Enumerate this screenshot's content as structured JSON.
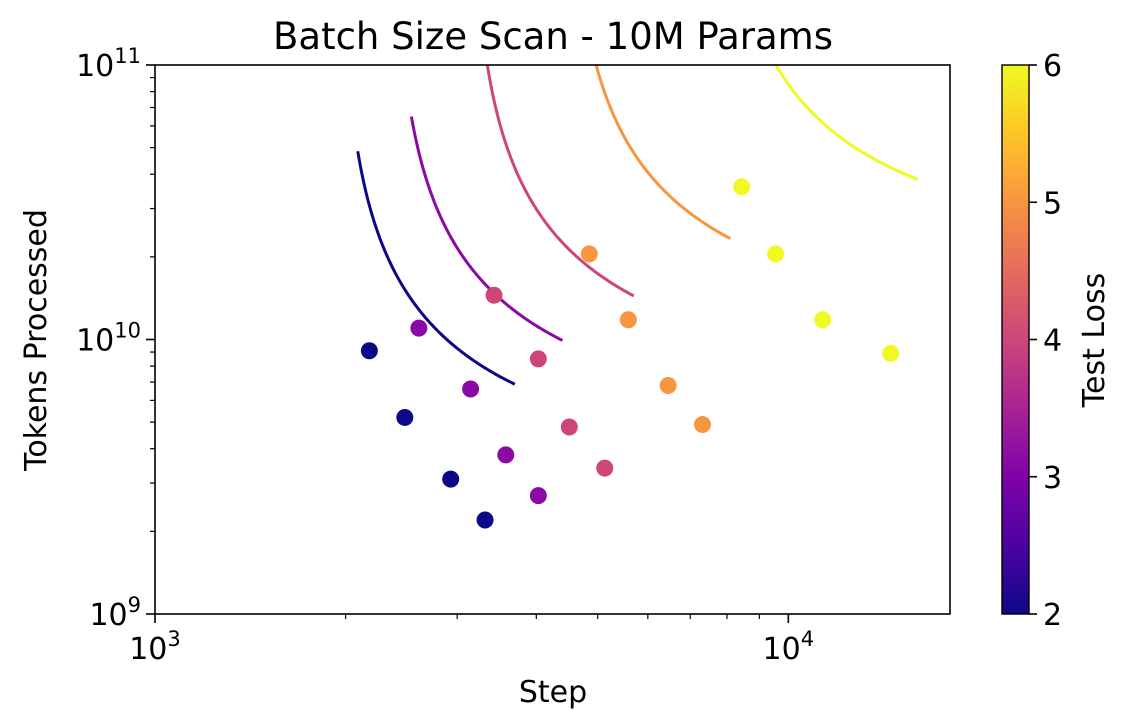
{
  "chart_data": {
    "type": "scatter",
    "title": "Batch Size Scan - 10M Params",
    "xlabel": "Step",
    "ylabel": "Tokens Processed",
    "xscale": "log",
    "yscale": "log",
    "xlim": [
      1000,
      18000
    ],
    "ylim": [
      1000000000,
      100000000000
    ],
    "x_ticks": [
      {
        "value": 1000,
        "base": "10",
        "exp": "3"
      },
      {
        "value": 10000,
        "base": "10",
        "exp": "4"
      }
    ],
    "y_ticks": [
      {
        "value": 1000000000,
        "base": "10",
        "exp": "9"
      },
      {
        "value": 10000000000,
        "base": "10",
        "exp": "10"
      },
      {
        "value": 100000000000,
        "base": "10",
        "exp": "11"
      }
    ],
    "colorbar": {
      "label": "Test Loss",
      "colormap": "plasma",
      "range": [
        2,
        6
      ],
      "ticks": [
        "2",
        "3",
        "4",
        "5",
        "6"
      ]
    },
    "series": [
      {
        "loss": 2.0,
        "color": "#0d0887",
        "points": [
          [
            2180,
            9100000000.0
          ],
          [
            2480,
            5200000000.0
          ],
          [
            2930,
            3100000000.0
          ],
          [
            3320,
            2200000000.0
          ]
        ],
        "curve": {
          "k": 3250000000.0,
          "x0": 1950,
          "x_range": [
            2090,
            3700
          ]
        }
      },
      {
        "loss": 3.0,
        "color": "#8b0aa5",
        "points": [
          [
            2610,
            11000000000.0
          ],
          [
            3150,
            6600000000.0
          ],
          [
            3580,
            3800000000.0
          ],
          [
            4030,
            2700000000.0
          ]
        ],
        "curve": {
          "k": 4600000000.0,
          "x0": 2360,
          "x_range": [
            2540,
            4400
          ]
        }
      },
      {
        "loss": 4.0,
        "color": "#cc4778",
        "points": [
          [
            3430,
            14500000000.0
          ],
          [
            4030,
            8500000000.0
          ],
          [
            4510,
            4800000000.0
          ],
          [
            5130,
            3400000000.0
          ]
        ],
        "curve": {
          "k": 6500000000.0,
          "x0": 3130,
          "x_range": [
            3330,
            5700
          ]
        }
      },
      {
        "loss": 5.0,
        "color": "#f89540",
        "points": [
          [
            4850,
            20500000000.0
          ],
          [
            5590,
            11800000000.0
          ],
          [
            6460,
            6800000000.0
          ],
          [
            7320,
            4900000000.0
          ]
        ],
        "curve": {
          "k": 10500000000.0,
          "x0": 4450,
          "x_range": [
            4720,
            8100
          ]
        }
      },
      {
        "loss": 6.0,
        "color": "#f0f921",
        "points": [
          [
            8440,
            36000000000.0
          ],
          [
            9550,
            20500000000.0
          ],
          [
            11330,
            11800000000.0
          ],
          [
            14510,
            8900000000.0
          ]
        ],
        "curve": {
          "k": 20000000000.0,
          "x0": 7650,
          "x_range": [
            8100,
            16000
          ]
        }
      }
    ]
  }
}
